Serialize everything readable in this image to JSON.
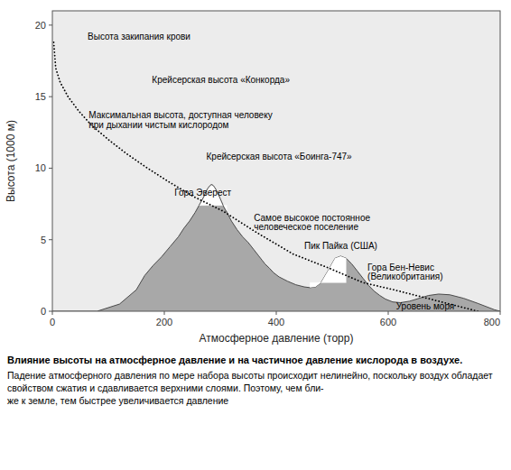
{
  "chart_data": {
    "type": "line",
    "title": "Влияние высоты на атмосферное давление и на частичное давление кислорода в воздухе.",
    "subtitle": [
      "Падение атмосферного давления по мере набора высоты происходит нелинейно, поскольку воздух обладает свойством сжатия и сдавливается верхними слоями. Поэтому, чем бли-",
      "же к земле, тем быстрее увеличивается давление"
    ],
    "xlabel": "Атмосферное давление (торр)",
    "ylabel": "Высота (1000 м)",
    "xlim": [
      0,
      800
    ],
    "ylim": [
      0,
      21
    ],
    "xticks": [
      0,
      200,
      400,
      600,
      800
    ],
    "yticks": [
      0,
      5,
      10,
      15,
      20
    ],
    "grid": false,
    "series": [
      {
        "type": "area",
        "color": "#a8a8a8",
        "x": [
          0,
          80,
          120,
          150,
          165,
          180,
          195,
          210,
          225,
          235,
          245,
          255,
          262,
          268,
          272,
          275,
          278,
          281,
          284,
          287,
          290,
          295,
          300,
          305,
          312,
          320,
          330,
          340,
          350,
          360,
          368,
          375,
          380,
          388,
          395,
          405,
          420,
          435,
          450,
          460,
          470,
          480,
          492,
          505,
          515,
          525,
          535,
          545,
          555,
          565,
          575,
          585,
          595,
          608,
          622,
          638,
          655,
          672,
          690,
          710,
          735,
          760,
          790,
          800
        ],
        "values": [
          0,
          0,
          0.5,
          1.5,
          2.5,
          3.2,
          3.8,
          4.5,
          5.2,
          5.8,
          6.3,
          6.9,
          7.4,
          7.8,
          8.1,
          8.4,
          8.6,
          8.75,
          8.85,
          8.8,
          8.65,
          8.3,
          7.85,
          7.4,
          6.9,
          6.3,
          5.7,
          5.2,
          4.8,
          4.3,
          3.9,
          3.55,
          3.3,
          3.0,
          2.7,
          2.4,
          2.1,
          1.85,
          1.7,
          1.65,
          1.7,
          2.0,
          2.8,
          3.7,
          3.85,
          3.7,
          3.3,
          2.8,
          2.3,
          1.8,
          1.4,
          1.1,
          0.85,
          0.65,
          0.6,
          0.7,
          0.9,
          1.1,
          1.2,
          1.15,
          0.9,
          0.55,
          0.1,
          0
        ]
      },
      {
        "type": "area",
        "color": "#ffffff",
        "base": 7.4,
        "x": [
          262,
          268,
          272,
          275,
          278,
          281,
          284,
          287,
          290,
          295,
          300,
          305,
          312
        ],
        "values": [
          7.4,
          7.8,
          8.1,
          8.4,
          8.6,
          8.75,
          8.85,
          8.8,
          8.65,
          8.3,
          7.85,
          7.4,
          6.9
        ]
      },
      {
        "type": "area",
        "color": "#ffffff",
        "base": 2.0,
        "x": [
          460,
          470,
          480,
          492,
          505,
          515,
          525
        ],
        "values": [
          1.65,
          1.7,
          2.0,
          2.8,
          3.7,
          3.85,
          3.7
        ]
      },
      {
        "type": "line",
        "color": "#000000",
        "line_style": "dotted",
        "x": [
          760,
          710,
          660,
          610,
          555,
          495,
          430,
          365,
          305,
          253,
          210,
          170,
          133,
          100,
          70,
          47,
          28,
          14,
          6,
          2
        ],
        "values": [
          0,
          0.5,
          1.0,
          1.5,
          2.0,
          3.0,
          4.0,
          5.5,
          7.0,
          8.0,
          9.0,
          10.0,
          11.0,
          12.0,
          13.0,
          14.0,
          15.0,
          16.0,
          17.0,
          19.0
        ]
      }
    ],
    "annotations": [
      {
        "text": "Высота закипания крови",
        "x": 63,
        "y": 19.2
      },
      {
        "text": "Крейсерская высота «Конкорда»",
        "x": 178,
        "y": 16.2
      },
      {
        "text": "Максимальная высота, доступная человеку",
        "x": 65,
        "y": 13.7
      },
      {
        "text": "при дыхании чистым кислородом",
        "x": 65,
        "y": 13.0
      },
      {
        "text": "Крейсерская высота «Боинга-747»",
        "x": 275,
        "y": 10.8
      },
      {
        "text": "Гора Эверест",
        "x": 218,
        "y": 8.3
      },
      {
        "text": "Самое высокое постоянное",
        "x": 360,
        "y": 6.55
      },
      {
        "text": "человеческое поселение",
        "x": 360,
        "y": 5.9
      },
      {
        "text": "Пик Пайка (США)",
        "x": 450,
        "y": 4.6
      },
      {
        "text": "Гора Бен-Невис",
        "x": 563,
        "y": 3.05
      },
      {
        "text": "(Великобритания)",
        "x": 563,
        "y": 2.4
      },
      {
        "text": "Уровень моря",
        "x": 614,
        "y": 0.35
      }
    ]
  }
}
